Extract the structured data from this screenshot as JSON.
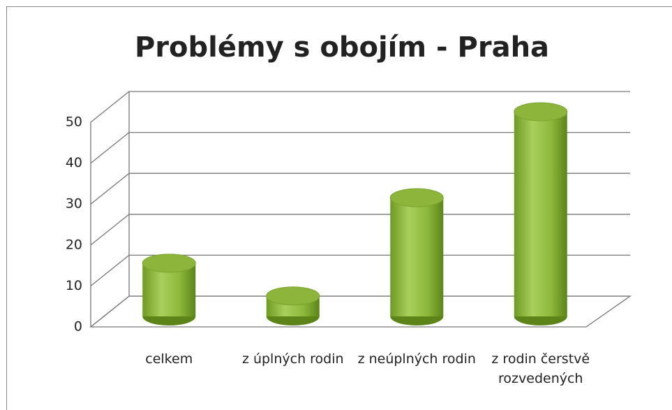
{
  "chart_data": {
    "type": "bar3d",
    "title": "Problémy s obojím - Praha",
    "categories": [
      "celkem",
      "z úplných rodin",
      "z neúplných rodin",
      "z rodin čerstvě rozvedených"
    ],
    "values": [
      13,
      5,
      29,
      50
    ],
    "color": "#8db53c",
    "ylim": [
      0,
      50
    ],
    "yticks": [
      0,
      10,
      20,
      30,
      40,
      50
    ],
    "grid": true
  }
}
